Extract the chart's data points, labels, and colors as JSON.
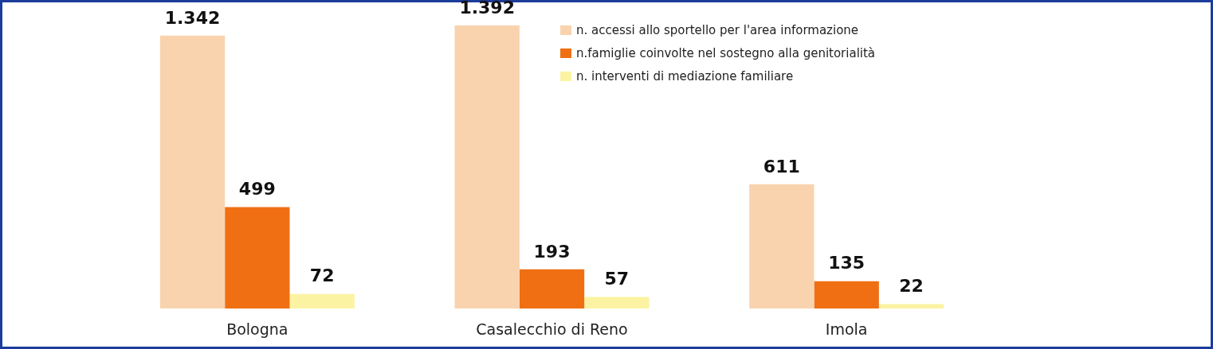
{
  "chart_data": {
    "type": "bar",
    "categories": [
      "Bologna",
      "Casalecchio di Reno",
      "Imola"
    ],
    "series": [
      {
        "name": "n. accessi allo sportello per l'area informazione",
        "color": "#f9d3ae",
        "values": [
          1342,
          1392,
          611
        ],
        "value_labels": [
          "1.342",
          "1.392",
          "611"
        ]
      },
      {
        "name": "n.famiglie coinvolte nel sostegno alla genitorialità",
        "color": "#ef6f12",
        "values": [
          499,
          193,
          135
        ],
        "value_labels": [
          "499",
          "193",
          "135"
        ]
      },
      {
        "name": "n. interventi di mediazione familiare",
        "color": "#fbf3a2",
        "values": [
          72,
          57,
          22
        ],
        "value_labels": [
          "72",
          "57",
          "22"
        ]
      }
    ],
    "legend": "top right"
  }
}
